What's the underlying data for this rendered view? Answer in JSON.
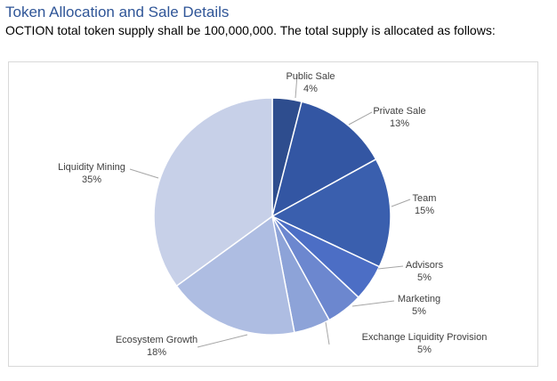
{
  "header": {
    "title": "Token Allocation and Sale Details",
    "subtitle": "OCTION total token supply shall be 100,000,000. The total supply is allocated as follows:"
  },
  "chart_data": {
    "type": "pie",
    "title": "",
    "start_angle_deg": 0,
    "direction": "clockwise",
    "slices": [
      {
        "label": "Public Sale",
        "value": 4,
        "percent": "4%",
        "color": "#2e4d8e"
      },
      {
        "label": "Private Sale",
        "value": 13,
        "percent": "13%",
        "color": "#3356a3"
      },
      {
        "label": "Team",
        "value": 15,
        "percent": "15%",
        "color": "#3a5fae"
      },
      {
        "label": "Advisors",
        "value": 5,
        "percent": "5%",
        "color": "#4c6ec5"
      },
      {
        "label": "Marketing",
        "value": 5,
        "percent": "5%",
        "color": "#6c87cf"
      },
      {
        "label": "Exchange Liquidity Provision",
        "value": 5,
        "percent": "5%",
        "color": "#8da3d8"
      },
      {
        "label": "Ecosystem Growth",
        "value": 18,
        "percent": "18%",
        "color": "#aebde2"
      },
      {
        "label": "Liquidity Mining",
        "value": 35,
        "percent": "35%",
        "color": "#c7d0e8"
      }
    ],
    "legend": "none",
    "data_labels": "outside with leader lines"
  }
}
